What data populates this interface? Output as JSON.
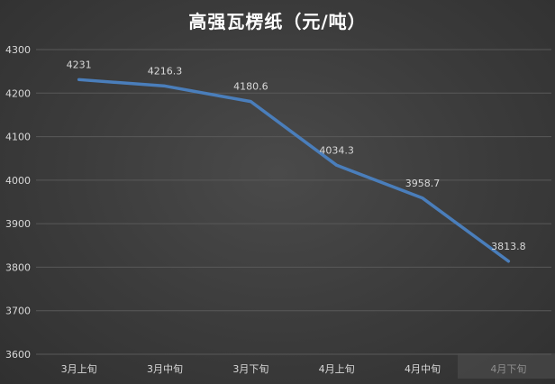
{
  "chart_data": {
    "type": "line",
    "title": "高强瓦楞纸（元/吨）",
    "xlabel": "",
    "ylabel": "",
    "categories": [
      "3月上旬",
      "3月中旬",
      "3月下旬",
      "4月上旬",
      "4月中旬",
      "4月下旬"
    ],
    "series": [
      {
        "values": [
          4231,
          4216.3,
          4180.6,
          4034.3,
          3958.7,
          3813.8
        ]
      }
    ],
    "data_labels": [
      "4231",
      "4216.3",
      "4180.6",
      "4034.3",
      "3958.7",
      "3813.8"
    ],
    "ylim": [
      3600,
      4300
    ],
    "yticks": [
      3600,
      3700,
      3800,
      3900,
      4000,
      4100,
      4200,
      4300
    ],
    "grid": true,
    "legend": "none",
    "colors": {
      "line": "#4a7ebb",
      "grid": "#595959",
      "text": "#d9d9d9",
      "title": "#ffffff"
    }
  }
}
